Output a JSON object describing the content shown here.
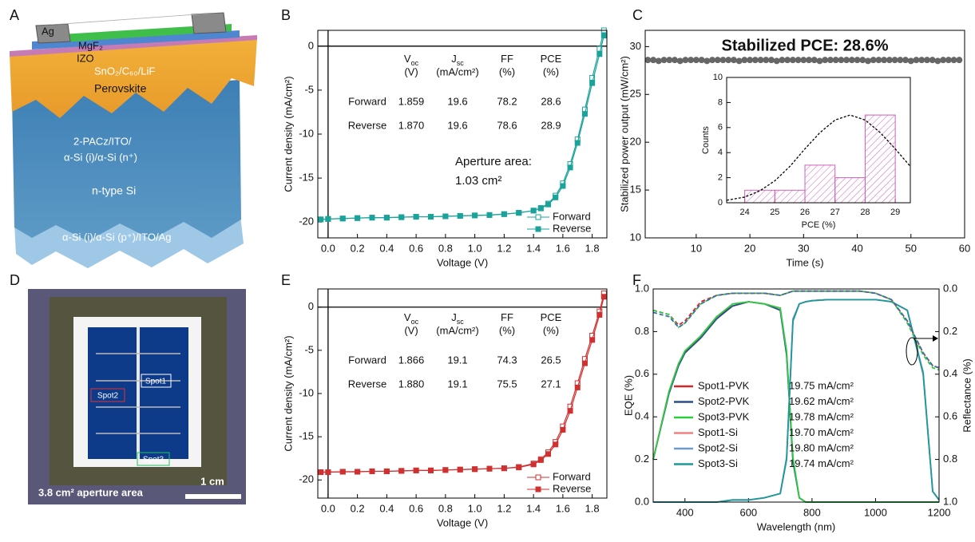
{
  "panel_labels": [
    "A",
    "B",
    "C",
    "D",
    "E",
    "F"
  ],
  "diagram": {
    "layers": [
      "Ag",
      "MgF₂",
      "IZO",
      "SnO₂/C₆₀/LiF",
      "Perovskite",
      "2-PACz/ITO/",
      "α-Si (i)/α-Si (n⁺)",
      "n-type Si",
      "α-Si (i)/α-Si (p⁺)/ITO/Ag"
    ]
  },
  "photo": {
    "spots": [
      "Spot1",
      "Spot2",
      "Spot3"
    ],
    "caption": "3.8 cm² aperture area",
    "scale_bar": "1 cm"
  },
  "chart_data": [
    {
      "type": "line",
      "xlabel": "Voltage (V)",
      "ylabel": "Current density (mA/cm²)",
      "zero_lines": true,
      "legend": "lower right",
      "xlim": [
        -0.07,
        1.9
      ],
      "ylim": [
        -21.8,
        1.8
      ],
      "xticks": [
        {
          "value": 0,
          "label": "0.0"
        },
        0.2,
        0.4,
        0.6,
        0.8,
        {
          "value": 1,
          "label": "1.0"
        },
        1.2,
        1.4,
        1.6,
        1.8
      ],
      "yticks": [
        0,
        -5,
        -10,
        -15,
        -20
      ],
      "x": [
        -0.05,
        0,
        0.1,
        0.2,
        0.3,
        0.4,
        0.5,
        0.6,
        0.7,
        0.8,
        0.9,
        1.0,
        1.1,
        1.2,
        1.3,
        1.4,
        1.45,
        1.5,
        1.55,
        1.6,
        1.65,
        1.7,
        1.75,
        1.8,
        1.85,
        1.88
      ],
      "series": [
        {
          "name": "Forward",
          "color": "#1aa39a",
          "marker": "open",
          "values": [
            -19.7,
            -19.65,
            -19.6,
            -19.55,
            -19.5,
            -19.5,
            -19.45,
            -19.4,
            -19.4,
            -19.35,
            -19.3,
            -19.25,
            -19.2,
            -19.1,
            -18.95,
            -18.7,
            -18.4,
            -17.9,
            -17.0,
            -15.6,
            -13.4,
            -10.6,
            -7.2,
            -3.6,
            -0.3,
            1.8
          ]
        },
        {
          "name": "Reverse",
          "color": "#1aa39a",
          "marker": "filled",
          "values": [
            -19.7,
            -19.65,
            -19.6,
            -19.55,
            -19.5,
            -19.5,
            -19.45,
            -19.4,
            -19.4,
            -19.35,
            -19.3,
            -19.25,
            -19.2,
            -19.1,
            -18.95,
            -18.7,
            -18.45,
            -18.0,
            -17.2,
            -15.9,
            -13.8,
            -11.0,
            -7.7,
            -4.2,
            -0.9,
            1.2
          ]
        }
      ],
      "table": {
        "columns": [
          {
            "symbol": "V",
            "sub": "oc",
            "unit": "(V)"
          },
          {
            "symbol": "J",
            "sub": "sc",
            "unit": "(mA/cm²)"
          },
          {
            "symbol": "FF",
            "unit": "(%)"
          },
          {
            "symbol": "PCE",
            "unit": "(%)"
          }
        ],
        "rows": [
          [
            "Forward",
            "1.859",
            "19.6",
            "78.2",
            "28.6"
          ],
          [
            "Reverse",
            "1.870",
            "19.6",
            "78.6",
            "28.9"
          ]
        ]
      },
      "annotation": [
        "Aperture area:",
        "1.03 cm²"
      ]
    },
    {
      "type": "scatter",
      "title": "Stabilized PCE: 28.6%",
      "xlabel": "Time (s)",
      "ylabel": "Stabilized power output (mW/cm²)",
      "color": "#666666",
      "xlim": [
        0.5,
        60
      ],
      "ylim": [
        10,
        31.7
      ],
      "xticks": [
        10,
        20,
        30,
        40,
        50,
        60
      ],
      "yticks": [
        10,
        15,
        20,
        25,
        30
      ],
      "x": [
        1,
        2,
        3,
        4,
        5,
        6,
        7,
        8,
        9,
        10,
        11,
        12,
        13,
        14,
        15,
        16,
        17,
        18,
        19,
        20,
        21,
        22,
        23,
        24,
        25,
        26,
        27,
        28,
        29,
        30,
        31,
        32,
        33,
        34,
        35,
        36,
        37,
        38,
        39,
        40,
        41,
        42,
        43,
        44,
        45,
        46,
        47,
        48,
        49,
        50,
        51,
        52,
        53,
        54,
        55,
        56,
        57,
        58,
        59
      ],
      "values": [
        28.6,
        28.6,
        28.5,
        28.6,
        28.6,
        28.6,
        28.5,
        28.6,
        28.6,
        28.6,
        28.6,
        28.5,
        28.6,
        28.6,
        28.6,
        28.6,
        28.6,
        28.5,
        28.6,
        28.6,
        28.6,
        28.6,
        28.6,
        28.6,
        28.5,
        28.6,
        28.6,
        28.6,
        28.6,
        28.6,
        28.6,
        28.6,
        28.5,
        28.6,
        28.6,
        28.6,
        28.6,
        28.6,
        28.6,
        28.6,
        28.6,
        28.5,
        28.6,
        28.6,
        28.6,
        28.6,
        28.6,
        28.6,
        28.6,
        28.5,
        28.6,
        28.6,
        28.6,
        28.6,
        28.5,
        28.6,
        28.6,
        28.6,
        28.6
      ],
      "inset": {
        "type": "histogram",
        "xlabel": "PCE (%)",
        "ylabel": "Counts",
        "color": "#d35fb7",
        "xlim": [
          23.4,
          29.5
        ],
        "ylim": [
          0,
          10
        ],
        "xticks": [
          24,
          25,
          26,
          27,
          28,
          29
        ],
        "yticks": [
          0,
          2,
          4,
          6,
          8,
          10
        ],
        "bins": [
          24,
          25,
          26,
          27,
          28,
          29
        ],
        "counts": [
          1,
          1,
          3,
          2,
          7
        ],
        "fit": {
          "x": [
            23.4,
            24,
            24.5,
            25,
            25.5,
            26,
            26.5,
            27,
            27.5,
            28,
            28.5,
            29,
            29.5
          ],
          "values": [
            0.2,
            0.45,
            0.95,
            1.75,
            2.9,
            4.3,
            5.6,
            6.6,
            7.0,
            6.6,
            5.6,
            4.3,
            2.9
          ]
        }
      }
    },
    {
      "type": "line",
      "xlabel": "Voltage (V)",
      "ylabel": "Current density (mA/cm²)",
      "zero_lines": true,
      "legend": "lower right",
      "xlim": [
        -0.07,
        1.9
      ],
      "ylim": [
        -22.1,
        2.1
      ],
      "xticks": [
        {
          "value": 0,
          "label": "0.0"
        },
        0.2,
        0.4,
        0.6,
        0.8,
        {
          "value": 1,
          "label": "1.0"
        },
        1.2,
        1.4,
        1.6,
        1.8
      ],
      "yticks": [
        0,
        -5,
        -10,
        -15,
        -20
      ],
      "x": [
        -0.05,
        0,
        0.1,
        0.2,
        0.3,
        0.4,
        0.5,
        0.6,
        0.7,
        0.8,
        0.9,
        1.0,
        1.1,
        1.2,
        1.3,
        1.4,
        1.45,
        1.5,
        1.55,
        1.6,
        1.65,
        1.7,
        1.75,
        1.8,
        1.85,
        1.88
      ],
      "series": [
        {
          "name": "Forward",
          "color": "#d03030",
          "marker": "open",
          "values": [
            -19.1,
            -19.1,
            -19.05,
            -19.05,
            -19.0,
            -19.0,
            -18.95,
            -18.9,
            -18.9,
            -18.85,
            -18.8,
            -18.75,
            -18.7,
            -18.65,
            -18.5,
            -18.1,
            -17.6,
            -16.8,
            -15.6,
            -13.8,
            -11.5,
            -8.8,
            -6.0,
            -3.3,
            -0.5,
            1.6
          ]
        },
        {
          "name": "Reverse",
          "color": "#d03030",
          "marker": "filled",
          "values": [
            -19.1,
            -19.1,
            -19.05,
            -19.05,
            -19.0,
            -19.0,
            -18.95,
            -18.9,
            -18.9,
            -18.85,
            -18.8,
            -18.75,
            -18.7,
            -18.65,
            -18.55,
            -18.2,
            -17.7,
            -17.0,
            -15.9,
            -14.2,
            -12.0,
            -9.3,
            -6.5,
            -3.8,
            -0.9,
            1.2
          ]
        }
      ],
      "table": {
        "columns": [
          {
            "symbol": "V",
            "sub": "oc",
            "unit": "(V)"
          },
          {
            "symbol": "J",
            "sub": "sc",
            "unit": "(mA/cm²)"
          },
          {
            "symbol": "FF",
            "unit": "(%)"
          },
          {
            "symbol": "PCE",
            "unit": "(%)"
          }
        ],
        "rows": [
          [
            "Forward",
            "1.866",
            "19.1",
            "74.3",
            "26.5"
          ],
          [
            "Reverse",
            "1.880",
            "19.1",
            "75.5",
            "27.1"
          ]
        ]
      }
    },
    {
      "type": "line",
      "xlabel": "Wavelength (nm)",
      "ylabel": "EQE (%)",
      "y2label": "Reflectance (%)",
      "legend": "center left",
      "xlim": [
        300,
        1200
      ],
      "ylim": [
        0,
        1
      ],
      "y2lim": [
        1,
        0
      ],
      "xticks": [
        400,
        600,
        800,
        1000,
        1200
      ],
      "yticks": [
        {
          "value": 0,
          "label": "0.0"
        },
        0.2,
        0.4,
        0.6,
        0.8,
        {
          "value": 1,
          "label": "1.0"
        }
      ],
      "y2ticks": [
        {
          "value": 0,
          "label": "0.0"
        },
        0.2,
        0.4,
        0.6,
        0.8,
        {
          "value": 1,
          "label": "1.0"
        }
      ],
      "x": [
        300,
        350,
        380,
        400,
        450,
        500,
        550,
        600,
        650,
        700,
        720,
        740,
        760,
        780,
        800,
        850,
        900,
        950,
        1000,
        1050,
        1100,
        1150,
        1180,
        1200
      ],
      "series": [
        {
          "name": "Spot1-PVK",
          "current": "19.75 mA/cm²",
          "color": "#d62728",
          "values": [
            0.2,
            0.52,
            0.65,
            0.7,
            0.78,
            0.87,
            0.92,
            0.94,
            0.93,
            0.91,
            0.7,
            0.2,
            0.02,
            0,
            0,
            0,
            0,
            0,
            0,
            0,
            0,
            0,
            0,
            0
          ]
        },
        {
          "name": "Spot2-PVK",
          "current": "19.62 mA/cm²",
          "color": "#2b4f8c",
          "values": [
            0.2,
            0.51,
            0.64,
            0.7,
            0.77,
            0.86,
            0.92,
            0.94,
            0.93,
            0.9,
            0.69,
            0.19,
            0.02,
            0,
            0,
            0,
            0,
            0,
            0,
            0,
            0,
            0,
            0,
            0
          ]
        },
        {
          "name": "Spot3-PVK",
          "current": "19.78 mA/cm²",
          "color": "#2ecc40",
          "values": [
            0.2,
            0.52,
            0.65,
            0.71,
            0.78,
            0.87,
            0.93,
            0.94,
            0.93,
            0.91,
            0.71,
            0.21,
            0.02,
            0,
            0,
            0,
            0,
            0,
            0,
            0,
            0,
            0,
            0,
            0
          ]
        },
        {
          "name": "Spot1-Si",
          "current": "19.70 mA/cm²",
          "color": "#f08080",
          "values": [
            0,
            0,
            0,
            0,
            0,
            0,
            0.01,
            0.01,
            0.02,
            0.04,
            0.2,
            0.85,
            0.93,
            0.94,
            0.945,
            0.95,
            0.95,
            0.95,
            0.95,
            0.94,
            0.9,
            0.6,
            0.05,
            0.01
          ]
        },
        {
          "name": "Spot2-Si",
          "current": "19.80 mA/cm²",
          "color": "#6b9bd1",
          "values": [
            0,
            0,
            0,
            0,
            0,
            0,
            0.01,
            0.01,
            0.02,
            0.04,
            0.21,
            0.86,
            0.93,
            0.94,
            0.945,
            0.95,
            0.95,
            0.95,
            0.95,
            0.94,
            0.9,
            0.61,
            0.05,
            0.01
          ]
        },
        {
          "name": "Spot3-Si",
          "current": "19.74 mA/cm²",
          "color": "#1a9a9a",
          "values": [
            0,
            0,
            0,
            0,
            0,
            0,
            0.01,
            0.01,
            0.02,
            0.04,
            0.2,
            0.85,
            0.93,
            0.94,
            0.945,
            0.95,
            0.95,
            0.95,
            0.95,
            0.94,
            0.9,
            0.6,
            0.05,
            0.01
          ]
        },
        {
          "axis": "y2",
          "dash": true,
          "color": "#d62728",
          "values": [
            0.1,
            0.12,
            0.17,
            0.15,
            0.06,
            0.03,
            0.02,
            0.02,
            0.02,
            0.03,
            0.02,
            0.01,
            0.01,
            0.01,
            0.01,
            0.01,
            0.01,
            0.01,
            0.02,
            0.05,
            0.15,
            0.3,
            0.36,
            0.37
          ]
        },
        {
          "axis": "y2",
          "dash": true,
          "color": "#2ecc40",
          "values": [
            0.1,
            0.12,
            0.18,
            0.16,
            0.07,
            0.03,
            0.02,
            0.02,
            0.02,
            0.03,
            0.02,
            0.01,
            0.01,
            0.01,
            0.01,
            0.01,
            0.01,
            0.01,
            0.02,
            0.05,
            0.16,
            0.31,
            0.37,
            0.38
          ]
        },
        {
          "axis": "y2",
          "dash": true,
          "color": "#3a6fb0",
          "values": [
            0.11,
            0.13,
            0.18,
            0.16,
            0.07,
            0.03,
            0.02,
            0.02,
            0.02,
            0.03,
            0.02,
            0.01,
            0.01,
            0.01,
            0.01,
            0.01,
            0.01,
            0.01,
            0.02,
            0.05,
            0.15,
            0.3,
            0.36,
            0.37
          ]
        }
      ]
    }
  ]
}
